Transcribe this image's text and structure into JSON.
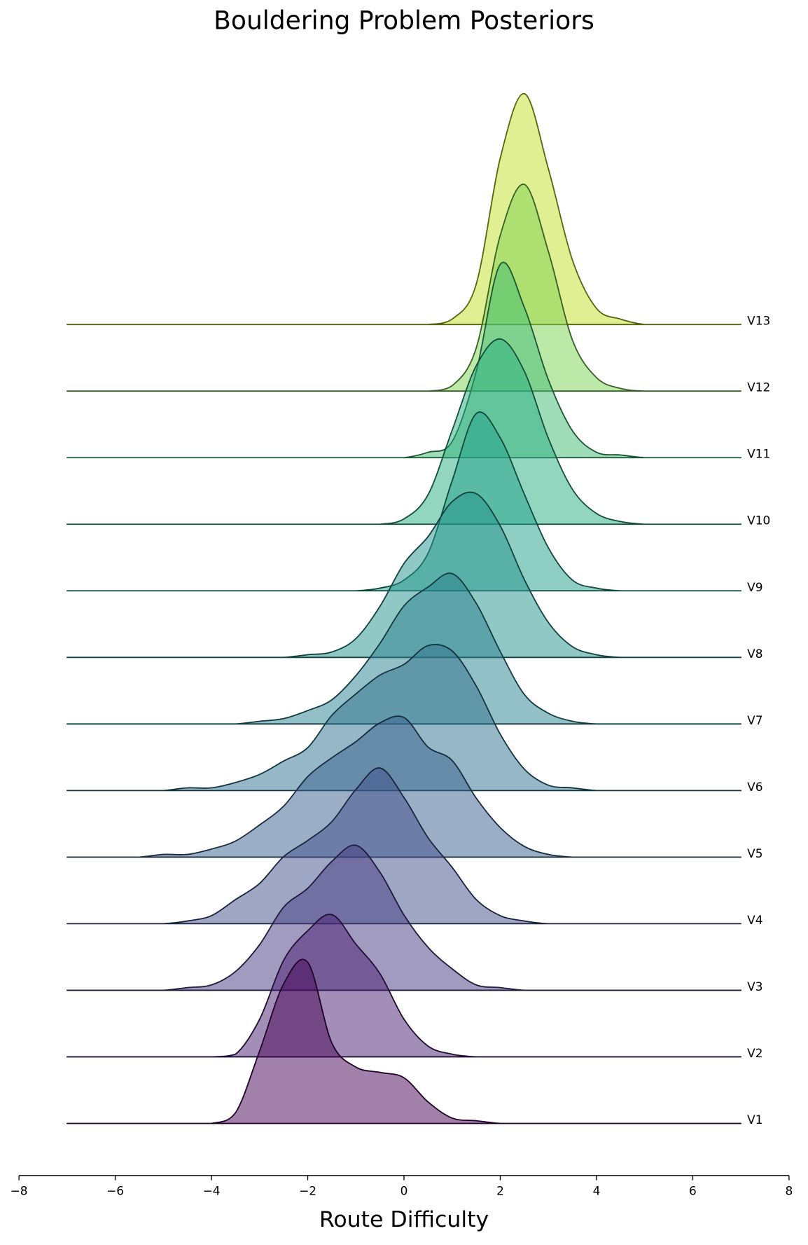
{
  "chart_data": {
    "type": "ridgeline",
    "title": "Bouldering Problem Posteriors",
    "xlabel": "Route Difficulty",
    "xlim": [
      -8,
      8
    ],
    "xticks": [
      {
        "value": -8,
        "label": "−8"
      },
      {
        "value": -6,
        "label": "−6"
      },
      {
        "value": -4,
        "label": "−4"
      },
      {
        "value": -2,
        "label": "−2"
      },
      0,
      2,
      4,
      6,
      8
    ],
    "x": [
      -7,
      -6.5,
      -6,
      -5.5,
      -5,
      -4.5,
      -4,
      -3.5,
      -3,
      -2.5,
      -2,
      -1.5,
      -1,
      -0.5,
      0,
      0.5,
      1,
      1.5,
      2,
      2.5,
      3,
      3.5,
      4,
      4.5,
      5,
      5.5,
      6,
      6.5,
      7
    ],
    "series": [
      {
        "name": "V1",
        "color": "#440154",
        "values": [
          0,
          0,
          0,
          0,
          0,
          0,
          0,
          0.04,
          0.27,
          0.52,
          0.6,
          0.3,
          0.21,
          0.19,
          0.17,
          0.08,
          0.02,
          0.01,
          0,
          0,
          0,
          0,
          0,
          0,
          0,
          0,
          0,
          0,
          0
        ]
      },
      {
        "name": "V2",
        "color": "#481d6f",
        "values": [
          0,
          0,
          0,
          0,
          0,
          0,
          0,
          0.01,
          0.14,
          0.36,
          0.47,
          0.53,
          0.42,
          0.31,
          0.14,
          0.04,
          0.01,
          0,
          0,
          0,
          0,
          0,
          0,
          0,
          0,
          0,
          0,
          0,
          0
        ]
      },
      {
        "name": "V3",
        "color": "#453781",
        "values": [
          0,
          0,
          0,
          0,
          0,
          0.01,
          0.02,
          0.07,
          0.17,
          0.31,
          0.38,
          0.48,
          0.54,
          0.44,
          0.28,
          0.16,
          0.08,
          0.02,
          0.01,
          0,
          0,
          0,
          0,
          0,
          0,
          0,
          0,
          0,
          0
        ]
      },
      {
        "name": "V4",
        "color": "#3d4e8a",
        "values": [
          0,
          0,
          0,
          0,
          0,
          0.01,
          0.03,
          0.09,
          0.15,
          0.25,
          0.31,
          0.38,
          0.5,
          0.58,
          0.47,
          0.32,
          0.21,
          0.09,
          0.03,
          0.01,
          0,
          0,
          0,
          0,
          0,
          0,
          0,
          0,
          0
        ]
      },
      {
        "name": "V5",
        "color": "#35608d",
        "values": [
          0,
          0,
          0,
          0,
          0.01,
          0.01,
          0.03,
          0.06,
          0.12,
          0.19,
          0.3,
          0.37,
          0.43,
          0.5,
          0.52,
          0.41,
          0.36,
          0.22,
          0.11,
          0.04,
          0.01,
          0,
          0,
          0,
          0,
          0,
          0,
          0,
          0
        ]
      },
      {
        "name": "V6",
        "color": "#2d718e",
        "values": [
          0,
          0,
          0,
          0,
          0,
          0.01,
          0.01,
          0.03,
          0.06,
          0.11,
          0.16,
          0.28,
          0.36,
          0.43,
          0.47,
          0.54,
          0.52,
          0.39,
          0.21,
          0.08,
          0.02,
          0.01,
          0,
          0,
          0,
          0,
          0,
          0,
          0
        ]
      },
      {
        "name": "V7",
        "color": "#277f8e",
        "values": [
          0,
          0,
          0,
          0,
          0,
          0,
          0,
          0,
          0.01,
          0.02,
          0.05,
          0.09,
          0.18,
          0.3,
          0.44,
          0.51,
          0.56,
          0.45,
          0.27,
          0.11,
          0.04,
          0.01,
          0,
          0,
          0,
          0,
          0,
          0,
          0
        ]
      },
      {
        "name": "V8",
        "color": "#21918c",
        "values": [
          0,
          0,
          0,
          0,
          0,
          0,
          0,
          0,
          0,
          0,
          0.01,
          0.02,
          0.07,
          0.19,
          0.35,
          0.45,
          0.58,
          0.61,
          0.49,
          0.29,
          0.13,
          0.04,
          0.01,
          0,
          0,
          0,
          0,
          0,
          0
        ]
      },
      {
        "name": "V9",
        "color": "#1fa088",
        "values": [
          0,
          0,
          0,
          0,
          0,
          0,
          0,
          0,
          0,
          0,
          0,
          0,
          0,
          0.01,
          0.04,
          0.14,
          0.41,
          0.66,
          0.57,
          0.36,
          0.16,
          0.04,
          0.01,
          0,
          0,
          0,
          0,
          0,
          0
        ]
      },
      {
        "name": "V10",
        "color": "#28ae80",
        "values": [
          0,
          0,
          0,
          0,
          0,
          0,
          0,
          0,
          0,
          0,
          0,
          0,
          0,
          0,
          0.02,
          0.11,
          0.35,
          0.59,
          0.69,
          0.57,
          0.32,
          0.13,
          0.04,
          0.01,
          0,
          0,
          0,
          0,
          0
        ]
      },
      {
        "name": "V11",
        "color": "#3fbc73",
        "values": [
          0,
          0,
          0,
          0,
          0,
          0,
          0,
          0,
          0,
          0,
          0,
          0,
          0,
          0,
          0,
          0.02,
          0.06,
          0.32,
          0.72,
          0.56,
          0.29,
          0.1,
          0.02,
          0.01,
          0,
          0,
          0,
          0,
          0
        ]
      },
      {
        "name": "V12",
        "color": "#7ad151",
        "values": [
          0,
          0,
          0,
          0,
          0,
          0,
          0,
          0,
          0,
          0,
          0,
          0,
          0,
          0,
          0,
          0,
          0.02,
          0.16,
          0.58,
          0.77,
          0.52,
          0.19,
          0.05,
          0.01,
          0,
          0,
          0,
          0,
          0
        ]
      },
      {
        "name": "V13",
        "color": "#c2df23",
        "values": [
          0,
          0,
          0,
          0,
          0,
          0,
          0,
          0,
          0,
          0,
          0,
          0,
          0,
          0,
          0,
          0,
          0.02,
          0.15,
          0.62,
          0.86,
          0.58,
          0.24,
          0.06,
          0.02,
          0,
          0,
          0,
          0,
          0
        ]
      }
    ]
  }
}
